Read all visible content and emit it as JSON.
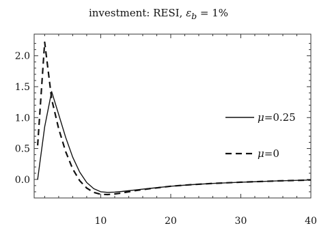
{
  "chart_data": {
    "type": "line",
    "title_prefix": "investment: RESI, ",
    "title_eps": "ε",
    "title_sub": "b",
    "title_suffix": " = 1%",
    "xlabel": "",
    "ylabel": "",
    "xlim": [
      0.5,
      40
    ],
    "ylim": [
      -0.3,
      2.35
    ],
    "x_ticks": [
      10,
      20,
      30,
      40
    ],
    "x_tick_labels": [
      "10",
      "20",
      "30",
      "40"
    ],
    "y_ticks": [
      0.0,
      0.5,
      1.0,
      1.5,
      2.0
    ],
    "y_tick_labels": [
      "0.0",
      "0.5",
      "1.0",
      "1.5",
      "2.0"
    ],
    "legend_position": "right",
    "series": [
      {
        "name": "μ=0.25",
        "legend_label": "=0.25",
        "style": "solid",
        "x": [
          1,
          2,
          3,
          4,
          5,
          6,
          7,
          8,
          9,
          10,
          11,
          12,
          13,
          15,
          17,
          20,
          23,
          26,
          30,
          35,
          40
        ],
        "y": [
          0.0,
          0.85,
          1.42,
          1.05,
          0.68,
          0.36,
          0.12,
          -0.05,
          -0.15,
          -0.2,
          -0.21,
          -0.205,
          -0.195,
          -0.17,
          -0.145,
          -0.11,
          -0.085,
          -0.065,
          -0.045,
          -0.025,
          -0.01
        ]
      },
      {
        "name": "μ=0",
        "legend_label": "=0",
        "style": "dashed",
        "x": [
          1,
          2,
          3,
          4,
          5,
          6,
          7,
          8,
          9,
          10,
          11,
          12,
          13,
          15,
          17,
          20,
          23,
          26,
          30,
          35,
          40
        ],
        "y": [
          0.55,
          2.22,
          1.3,
          0.82,
          0.45,
          0.17,
          -0.02,
          -0.14,
          -0.21,
          -0.24,
          -0.245,
          -0.235,
          -0.22,
          -0.18,
          -0.15,
          -0.11,
          -0.085,
          -0.065,
          -0.045,
          -0.025,
          -0.01
        ]
      }
    ],
    "grid": false
  }
}
